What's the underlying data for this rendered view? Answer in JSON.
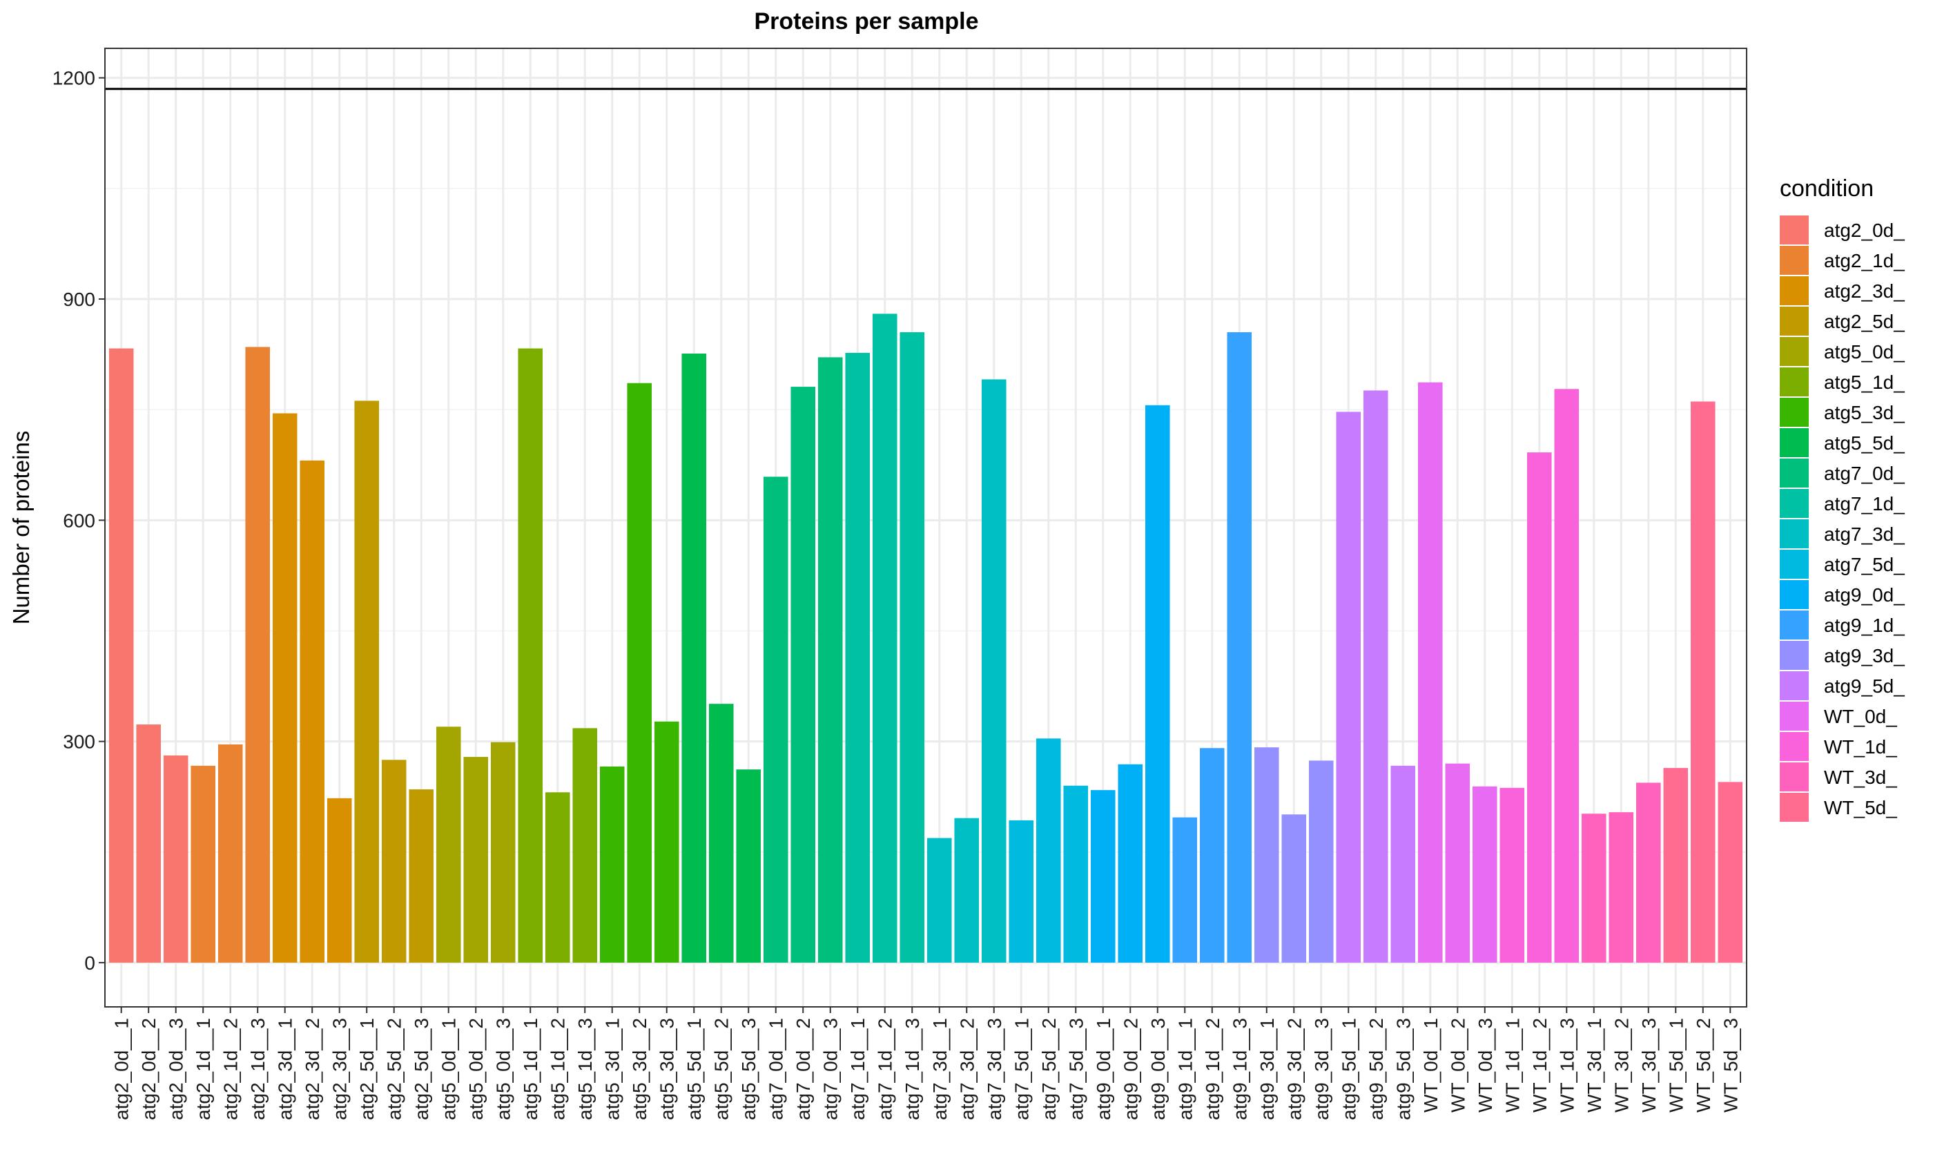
{
  "chart_data": {
    "type": "bar",
    "title": "Proteins per sample",
    "xlabel": "",
    "ylabel": "Number of proteins",
    "ylim": [
      -60,
      1240
    ],
    "yticks": [
      0,
      300,
      600,
      900,
      1200
    ],
    "hline": 1185,
    "grid": true,
    "legend": {
      "title": "condition",
      "placement": "right",
      "entries": [
        {
          "label": "atg2_0d_",
          "color": "#F8766D"
        },
        {
          "label": "atg2_1d_",
          "color": "#EA8331"
        },
        {
          "label": "atg2_3d_",
          "color": "#D89000"
        },
        {
          "label": "atg2_5d_",
          "color": "#C09B00"
        },
        {
          "label": "atg5_0d_",
          "color": "#A3A500"
        },
        {
          "label": "atg5_1d_",
          "color": "#7CAE00"
        },
        {
          "label": "atg5_3d_",
          "color": "#39B600"
        },
        {
          "label": "atg5_5d_",
          "color": "#00BB4E"
        },
        {
          "label": "atg7_0d_",
          "color": "#00BF7D"
        },
        {
          "label": "atg7_1d_",
          "color": "#00C1A3"
        },
        {
          "label": "atg7_3d_",
          "color": "#00BFC4"
        },
        {
          "label": "atg7_5d_",
          "color": "#00BAE0"
        },
        {
          "label": "atg9_0d_",
          "color": "#00B0F6"
        },
        {
          "label": "atg9_1d_",
          "color": "#35A2FF"
        },
        {
          "label": "atg9_3d_",
          "color": "#9590FF"
        },
        {
          "label": "atg9_5d_",
          "color": "#C77CFF"
        },
        {
          "label": "WT_0d_",
          "color": "#E76BF3"
        },
        {
          "label": "WT_1d_",
          "color": "#FA62DB"
        },
        {
          "label": "WT_3d_",
          "color": "#FF62BC"
        },
        {
          "label": "WT_5d_",
          "color": "#FF6C90"
        }
      ]
    },
    "categories": [
      "atg2_0d__1",
      "atg2_0d__2",
      "atg2_0d__3",
      "atg2_1d__1",
      "atg2_1d__2",
      "atg2_1d__3",
      "atg2_3d__1",
      "atg2_3d__2",
      "atg2_3d__3",
      "atg2_5d__1",
      "atg2_5d__2",
      "atg2_5d__3",
      "atg5_0d__1",
      "atg5_0d__2",
      "atg5_0d__3",
      "atg5_1d__1",
      "atg5_1d__2",
      "atg5_1d__3",
      "atg5_3d__1",
      "atg5_3d__2",
      "atg5_3d__3",
      "atg5_5d__1",
      "atg5_5d__2",
      "atg5_5d__3",
      "atg7_0d__1",
      "atg7_0d__2",
      "atg7_0d__3",
      "atg7_1d__1",
      "atg7_1d__2",
      "atg7_1d__3",
      "atg7_3d__1",
      "atg7_3d__2",
      "atg7_3d__3",
      "atg7_5d__1",
      "atg7_5d__2",
      "atg7_5d__3",
      "atg9_0d__1",
      "atg9_0d__2",
      "atg9_0d__3",
      "atg9_1d__1",
      "atg9_1d__2",
      "atg9_1d__3",
      "atg9_3d__1",
      "atg9_3d__2",
      "atg9_3d__3",
      "atg9_5d__1",
      "atg9_5d__2",
      "atg9_5d__3",
      "WT_0d__1",
      "WT_0d__2",
      "WT_0d__3",
      "WT_1d__1",
      "WT_1d__2",
      "WT_1d__3",
      "WT_3d__1",
      "WT_3d__2",
      "WT_3d__3",
      "WT_5d__1",
      "WT_5d__2",
      "WT_5d__3"
    ],
    "values": [
      833,
      323,
      281,
      267,
      296,
      835,
      745,
      681,
      223,
      762,
      275,
      235,
      320,
      279,
      299,
      833,
      231,
      318,
      266,
      786,
      327,
      826,
      351,
      262,
      659,
      781,
      821,
      827,
      880,
      855,
      169,
      196,
      791,
      193,
      304,
      240,
      234,
      269,
      756,
      197,
      291,
      855,
      292,
      201,
      274,
      747,
      776,
      267,
      787,
      270,
      239,
      237,
      692,
      778,
      202,
      204,
      244,
      264,
      761,
      245
    ]
  }
}
